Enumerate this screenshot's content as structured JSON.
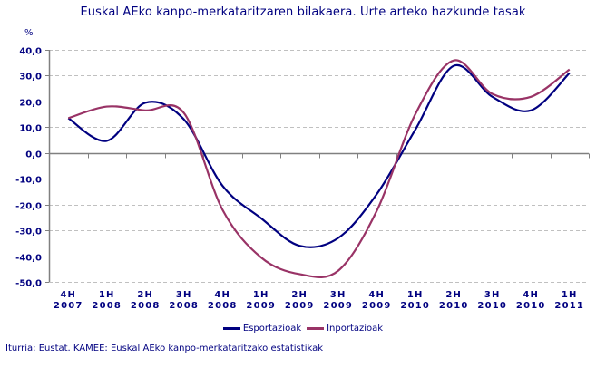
{
  "title": "Euskal AEko kanpo-merkataritzaren bilakaera. Urte arteko hazkunde tasak",
  "unit_label": "%",
  "source": "Iturria: Eustat. KAMEE: Euskal AEko kanpo-merkataritzako estatistikak",
  "legend": [
    {
      "label": "Esportazioak",
      "color": "#000080"
    },
    {
      "label": "Inportazioak",
      "color": "#993366"
    }
  ],
  "chart_data": {
    "type": "line",
    "title": "Euskal AEko kanpo-merkataritzaren bilakaera. Urte arteko hazkunde tasak",
    "xlabel": "",
    "ylabel": "%",
    "ylim": [
      -50,
      40
    ],
    "yticks": [
      "40,0",
      "30,0",
      "20,0",
      "10,0",
      "0,0",
      "-10,0",
      "-20,0",
      "-30,0",
      "-40,0",
      "-50,0"
    ],
    "ytick_values": [
      40,
      30,
      20,
      10,
      0,
      -10,
      -20,
      -30,
      -40,
      -50
    ],
    "grid": "horizontal dashed",
    "legend_position": "bottom",
    "smoothed": true,
    "categories": [
      [
        "4H",
        "2007"
      ],
      [
        "1H",
        "2008"
      ],
      [
        "2H",
        "2008"
      ],
      [
        "3H",
        "2008"
      ],
      [
        "4H",
        "2008"
      ],
      [
        "1H",
        "2009"
      ],
      [
        "2H",
        "2009"
      ],
      [
        "3H",
        "2009"
      ],
      [
        "4H",
        "2009"
      ],
      [
        "1H",
        "2010"
      ],
      [
        "2H",
        "2010"
      ],
      [
        "3H",
        "2010"
      ],
      [
        "4H",
        "2010"
      ],
      [
        "1H",
        "2011"
      ]
    ],
    "series": [
      {
        "name": "Esportazioak",
        "color": "#000080",
        "values": [
          13.5,
          4.7,
          19.5,
          13.0,
          -12.7,
          -25.3,
          -36.0,
          -33.0,
          -16.0,
          9.0,
          33.8,
          21.8,
          16.5,
          31.0
        ]
      },
      {
        "name": "Inportazioak",
        "color": "#993366",
        "values": [
          13.5,
          18.0,
          16.5,
          15.5,
          -22.0,
          -40.5,
          -47.0,
          -45.7,
          -22.5,
          15.0,
          35.9,
          22.9,
          21.8,
          32.4
        ]
      }
    ]
  }
}
